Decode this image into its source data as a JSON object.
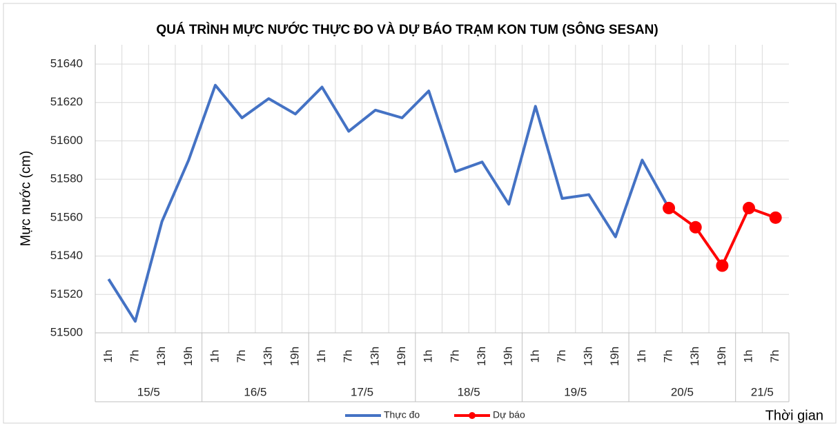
{
  "chart_data": {
    "type": "line",
    "title": "QUÁ TRÌNH MỰC NƯỚC THỰC ĐO VÀ DỰ BÁO TRẠM KON TUM (SÔNG SESAN)",
    "y_label": "Mực nước (cm)",
    "x_label": "Thời gian",
    "groups": [
      {
        "label": "15/5",
        "categories": [
          "1h",
          "7h",
          "13h",
          "19h"
        ]
      },
      {
        "label": "16/5",
        "categories": [
          "1h",
          "7h",
          "13h",
          "19h"
        ]
      },
      {
        "label": "17/5",
        "categories": [
          "1h",
          "7h",
          "13h",
          "19h"
        ]
      },
      {
        "label": "18/5",
        "categories": [
          "1h",
          "7h",
          "13h",
          "19h"
        ]
      },
      {
        "label": "19/5",
        "categories": [
          "1h",
          "7h",
          "13h",
          "19h"
        ]
      },
      {
        "label": "20/5",
        "categories": [
          "1h",
          "7h",
          "13h",
          "19h"
        ]
      },
      {
        "label": "21/5",
        "categories": [
          "1h",
          "7h"
        ]
      }
    ],
    "series": [
      {
        "name": "Thực đo",
        "color": "#4472c4",
        "marker": false,
        "values": [
          51528,
          51506,
          51558,
          51590,
          51629,
          51612,
          51622,
          51614,
          51628,
          51605,
          51616,
          51612,
          51626,
          51584,
          51589,
          51567,
          51618,
          51570,
          51572,
          51550,
          51590,
          51565,
          null,
          null,
          null,
          null
        ]
      },
      {
        "name": "Dự báo",
        "color": "#ff0000",
        "marker": true,
        "values": [
          null,
          null,
          null,
          null,
          null,
          null,
          null,
          null,
          null,
          null,
          null,
          null,
          null,
          null,
          null,
          null,
          null,
          null,
          null,
          null,
          null,
          51565,
          51555,
          51535,
          51565,
          51560
        ]
      }
    ],
    "ylim": [
      51500,
      51640
    ],
    "yticks": [
      51500,
      51520,
      51540,
      51560,
      51580,
      51600,
      51620,
      51640
    ],
    "grid": true
  }
}
